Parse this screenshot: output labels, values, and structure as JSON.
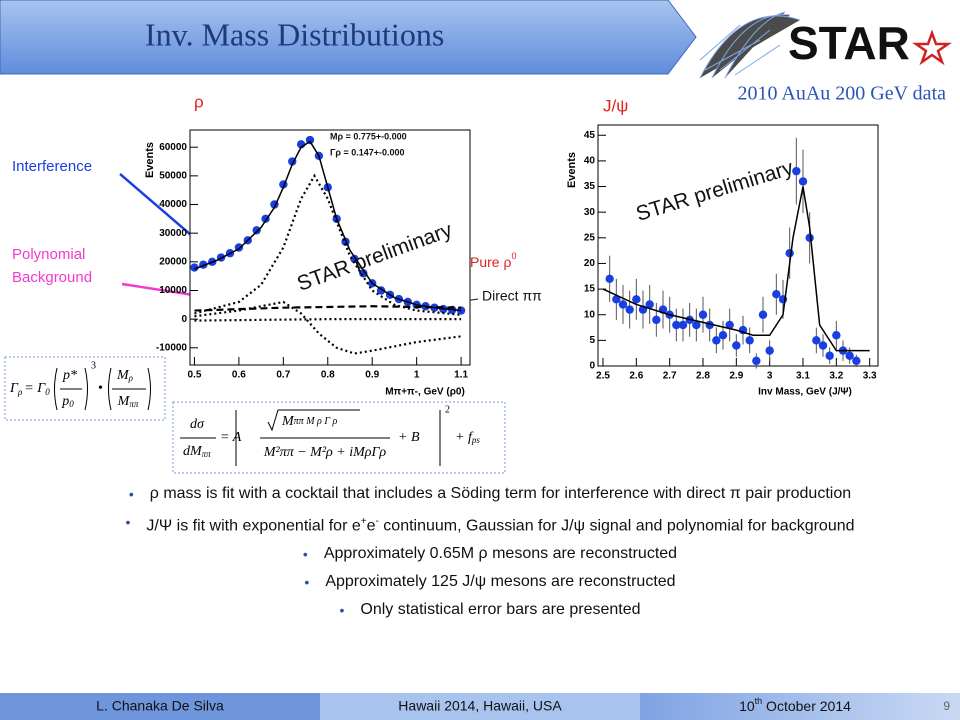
{
  "header": {
    "title": "Inv. Mass Distributions",
    "logo": "STAR",
    "dataset": "2010 AuAu 200 GeV data"
  },
  "labels": {
    "rho": "ρ",
    "jpsi": "J/ψ",
    "interference": "Interference",
    "polynomial": [
      "Polynomial",
      "Background"
    ],
    "pure_rho": "Pure ρ",
    "pure_rho_sup": "0",
    "direct": "Direct ππ"
  },
  "formulas": {
    "width": {
      "lhs": "Γ",
      "lhs_sub": "ρ",
      "eq": "= Γ",
      "eq_sub": "0",
      "num1": "p*",
      "den1": "p",
      "den1_sub": "0",
      "power": "3",
      "dot": "•",
      "num2": "M",
      "num2_sub": "ρ",
      "den2": "M",
      "den2_sub": "ππ"
    },
    "xsec": {
      "num": "dσ",
      "den": "dM",
      "den_sub": "ππ",
      "eq": "= A",
      "root": "M",
      "root_rest": "ππ M ρ Γ ρ",
      "denom": "M²ππ − M²ρ + iMρΓρ",
      "plus_b": "+ B",
      "power": "2",
      "plus_f": "+ f",
      "plus_f_sub": "ps"
    }
  },
  "chart_data": [
    {
      "type": "scatter",
      "title": null,
      "y_label": "Events",
      "x_label": "Mπ+π-, GeV (ρ0)",
      "annotations": [
        "Mρ = 0.775+-0.000",
        "Γρ = 0.147+-0.000",
        "STAR preliminary"
      ],
      "xlim": [
        0.49,
        1.12
      ],
      "ylim": [
        -16000,
        66000
      ],
      "xticks": [
        0.5,
        0.6,
        0.7,
        0.8,
        0.9,
        1,
        1.1
      ],
      "yticks": [
        -10000,
        0,
        10000,
        20000,
        30000,
        40000,
        50000,
        60000
      ],
      "series": [
        {
          "kind": "points",
          "color": "#1a3fe0",
          "x": [
            0.5,
            0.52,
            0.54,
            0.56,
            0.58,
            0.6,
            0.62,
            0.64,
            0.66,
            0.68,
            0.7,
            0.72,
            0.74,
            0.76,
            0.78,
            0.8,
            0.82,
            0.84,
            0.86,
            0.88,
            0.9,
            0.92,
            0.94,
            0.96,
            0.98,
            1.0,
            1.02,
            1.04,
            1.06,
            1.08,
            1.1
          ],
          "values": [
            18000,
            19000,
            20000,
            21500,
            23000,
            25000,
            27500,
            31000,
            35000,
            40000,
            47000,
            55000,
            61000,
            62500,
            57000,
            46000,
            35000,
            27000,
            21000,
            16000,
            12500,
            10000,
            8500,
            7000,
            6000,
            5000,
            4500,
            4000,
            3500,
            3200,
            3000
          ]
        },
        {
          "kind": "line",
          "dash": "solid",
          "color": "#000000",
          "x": [
            0.5,
            0.55,
            0.6,
            0.65,
            0.68,
            0.7,
            0.72,
            0.74,
            0.76,
            0.78,
            0.8,
            0.82,
            0.85,
            0.9,
            0.95,
            1.0,
            1.05,
            1.1
          ],
          "values": [
            17500,
            20500,
            24500,
            32000,
            39000,
            46000,
            54000,
            60000,
            62000,
            57000,
            46000,
            35000,
            24000,
            12500,
            7500,
            5000,
            3800,
            3000
          ]
        },
        {
          "kind": "line",
          "dash": "dotted",
          "color": "#000000",
          "x": [
            0.5,
            0.6,
            0.65,
            0.7,
            0.74,
            0.77,
            0.8,
            0.85,
            0.9,
            0.95,
            1.0,
            1.1
          ],
          "values": [
            2000,
            6000,
            12000,
            25000,
            42000,
            50000,
            42000,
            22000,
            10000,
            5000,
            3000,
            1500
          ]
        },
        {
          "kind": "line",
          "dash": "dashed",
          "color": "#000000",
          "x": [
            0.5,
            0.7,
            0.9,
            1.1
          ],
          "values": [
            3000,
            4000,
            4500,
            4000
          ]
        },
        {
          "kind": "line",
          "dash": "dotted",
          "color": "#000000",
          "x": [
            0.5,
            0.6,
            0.7,
            0.74,
            0.78,
            0.82,
            0.86,
            0.9,
            1.0,
            1.1
          ],
          "values": [
            1000,
            3000,
            6000,
            2000,
            -5000,
            -10000,
            -12000,
            -11000,
            -8000,
            -6000
          ]
        },
        {
          "kind": "line",
          "dash": "dotted",
          "color": "#000000",
          "x": [
            0.5,
            0.8,
            1.1
          ],
          "values": [
            -500,
            0,
            0
          ]
        }
      ]
    },
    {
      "type": "scatter",
      "title": null,
      "y_label": "Events",
      "x_label": "Inv Mass, GeV (J/Ψ)",
      "annotations": [
        "STAR preliminary"
      ],
      "xlim": [
        2.485,
        3.325
      ],
      "ylim": [
        0,
        47
      ],
      "xticks": [
        2.5,
        2.6,
        2.7,
        2.8,
        2.9,
        3,
        3.1,
        3.2,
        3.3
      ],
      "yticks": [
        0,
        5,
        10,
        15,
        20,
        25,
        30,
        35,
        40,
        45
      ],
      "series": [
        {
          "kind": "points",
          "color": "#1a3fe0",
          "x": [
            2.52,
            2.54,
            2.56,
            2.58,
            2.6,
            2.62,
            2.64,
            2.66,
            2.68,
            2.7,
            2.72,
            2.74,
            2.76,
            2.78,
            2.8,
            2.82,
            2.84,
            2.86,
            2.88,
            2.9,
            2.92,
            2.94,
            2.96,
            2.98,
            3.0,
            3.02,
            3.04,
            3.06,
            3.08,
            3.1,
            3.12,
            3.14,
            3.16,
            3.18,
            3.2,
            3.22,
            3.24,
            3.26
          ],
          "values": [
            17,
            13,
            12,
            11,
            13,
            11,
            12,
            9,
            11,
            10,
            8,
            8,
            9,
            8,
            10,
            8,
            5,
            6,
            8,
            4,
            7,
            5,
            1,
            10,
            3,
            14,
            13,
            22,
            38,
            36,
            25,
            5,
            4,
            2,
            6,
            3,
            2,
            1
          ],
          "errors": [
            4.5,
            4,
            3.8,
            3.7,
            4,
            3.7,
            3.8,
            3.3,
            3.7,
            3.5,
            3.2,
            3.2,
            3.3,
            3.2,
            3.5,
            3.2,
            2.5,
            2.8,
            3.2,
            2.2,
            2.8,
            2.5,
            1.5,
            3.5,
            2,
            4,
            3.8,
            5,
            6.5,
            6.2,
            5,
            2.5,
            2.2,
            1.6,
            2.8,
            2,
            1.6,
            1.2
          ]
        },
        {
          "kind": "line",
          "dash": "solid",
          "color": "#000000",
          "x": [
            2.5,
            2.6,
            2.7,
            2.8,
            2.9,
            2.95,
            3.0,
            3.04,
            3.07,
            3.1,
            3.12,
            3.15,
            3.2,
            3.3
          ],
          "values": [
            15,
            12,
            10,
            8.5,
            7,
            6,
            6,
            10,
            25,
            35,
            27,
            8,
            3,
            3
          ]
        }
      ]
    }
  ],
  "bullets": [
    [
      "ρ mass is fit with a cocktail that includes a Söding term for interference with direct π pair production"
    ],
    [
      "J/Ψ is fit with exponential for e",
      "+",
      "e",
      "-",
      " continuum, Gaussian for J/ψ signal and polynomial for background"
    ],
    [
      "Approximately 0.65M ρ mesons are reconstructed"
    ],
    [
      "Approximately 125 J/ψ mesons are reconstructed"
    ],
    [
      "Only statistical error bars are presented"
    ]
  ],
  "footer": {
    "author": "L. Chanaka De Silva",
    "venue": "Hawaii 2014, Hawaii, USA",
    "day": "10",
    "day_suffix": "th",
    "date_rest": " October 2014",
    "page": "9"
  }
}
